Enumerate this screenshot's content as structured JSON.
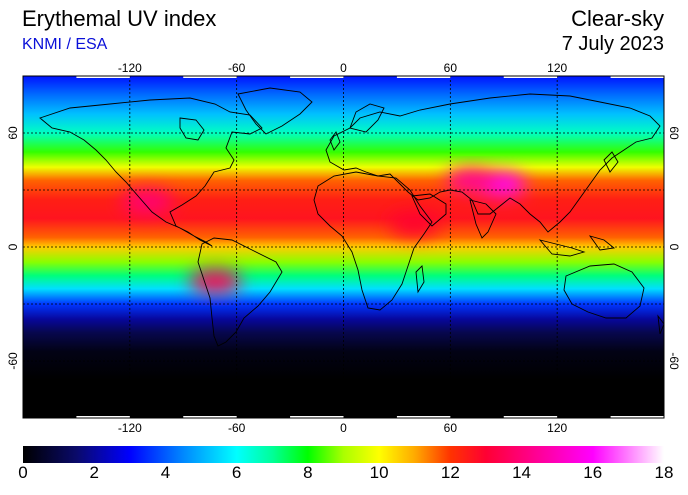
{
  "header": {
    "title": "Erythemal UV index",
    "credit": "KNMI / ESA",
    "mode": "Clear-sky",
    "date": "7 July 2023"
  },
  "map": {
    "projection": "equirectangular",
    "lon_range": [
      -180,
      180
    ],
    "lat_range": [
      -90,
      90
    ],
    "grid_lons": [
      -120,
      -60,
      0,
      60,
      120
    ],
    "grid_lats": [
      60,
      30,
      0,
      -30,
      -60
    ],
    "lon_tick_labels": [
      "-120",
      "-60",
      "0",
      "60",
      "120"
    ],
    "lat_tick_labels": [
      "60",
      "0",
      "-60"
    ],
    "lat_tick_values": [
      60,
      0,
      -60
    ],
    "grid_style": "dotted black",
    "ocean_land_fill": "UV index colour field",
    "coastlines": "black"
  },
  "colorbar": {
    "min": 0,
    "max": 18,
    "tick_labels": [
      "0",
      "2",
      "4",
      "6",
      "8",
      "10",
      "12",
      "14",
      "16",
      "18"
    ],
    "tick_values": [
      0,
      2,
      4,
      6,
      8,
      10,
      12,
      14,
      16,
      18
    ],
    "colors": [
      {
        "value": 0,
        "color": "#000000"
      },
      {
        "value": 1.5,
        "color": "#0a0a6a"
      },
      {
        "value": 3,
        "color": "#0000ff"
      },
      {
        "value": 4.5,
        "color": "#0088ff"
      },
      {
        "value": 6,
        "color": "#00ffff"
      },
      {
        "value": 7,
        "color": "#00ff99"
      },
      {
        "value": 8,
        "color": "#00ff00"
      },
      {
        "value": 9,
        "color": "#aaff00"
      },
      {
        "value": 10,
        "color": "#ffff00"
      },
      {
        "value": 11,
        "color": "#ffaa00"
      },
      {
        "value": 12,
        "color": "#ff3300"
      },
      {
        "value": 13,
        "color": "#ff0033"
      },
      {
        "value": 14,
        "color": "#ff0077"
      },
      {
        "value": 16,
        "color": "#ff00ff"
      },
      {
        "value": 18,
        "color": "#ffffff"
      }
    ]
  },
  "uv_latitude_profile": [
    {
      "lat": 90,
      "uv": 3.2
    },
    {
      "lat": 80,
      "uv": 4.2
    },
    {
      "lat": 70,
      "uv": 5.2
    },
    {
      "lat": 60,
      "uv": 6.6
    },
    {
      "lat": 50,
      "uv": 8.3
    },
    {
      "lat": 42,
      "uv": 9.8
    },
    {
      "lat": 35,
      "uv": 11.6
    },
    {
      "lat": 25,
      "uv": 12.4
    },
    {
      "lat": 15,
      "uv": 12.6
    },
    {
      "lat": 5,
      "uv": 11.6
    },
    {
      "lat": 0,
      "uv": 10.6
    },
    {
      "lat": -8,
      "uv": 8.8
    },
    {
      "lat": -15,
      "uv": 7.2
    },
    {
      "lat": -22,
      "uv": 5.6
    },
    {
      "lat": -30,
      "uv": 3.6
    },
    {
      "lat": -38,
      "uv": 2.0
    },
    {
      "lat": -45,
      "uv": 1.1
    },
    {
      "lat": -55,
      "uv": 0.3
    },
    {
      "lat": -70,
      "uv": 0
    },
    {
      "lat": -90,
      "uv": 0
    }
  ],
  "uv_hotspots": [
    {
      "lon": 88,
      "lat": 33,
      "uv": 16
    },
    {
      "lon": 72,
      "lat": 35,
      "uv": 14.5
    },
    {
      "lon": -110,
      "lat": 24,
      "uv": 14
    },
    {
      "lon": -72,
      "lat": -18,
      "uv": 13.5
    },
    {
      "lon": 40,
      "lat": 12,
      "uv": 13
    }
  ]
}
